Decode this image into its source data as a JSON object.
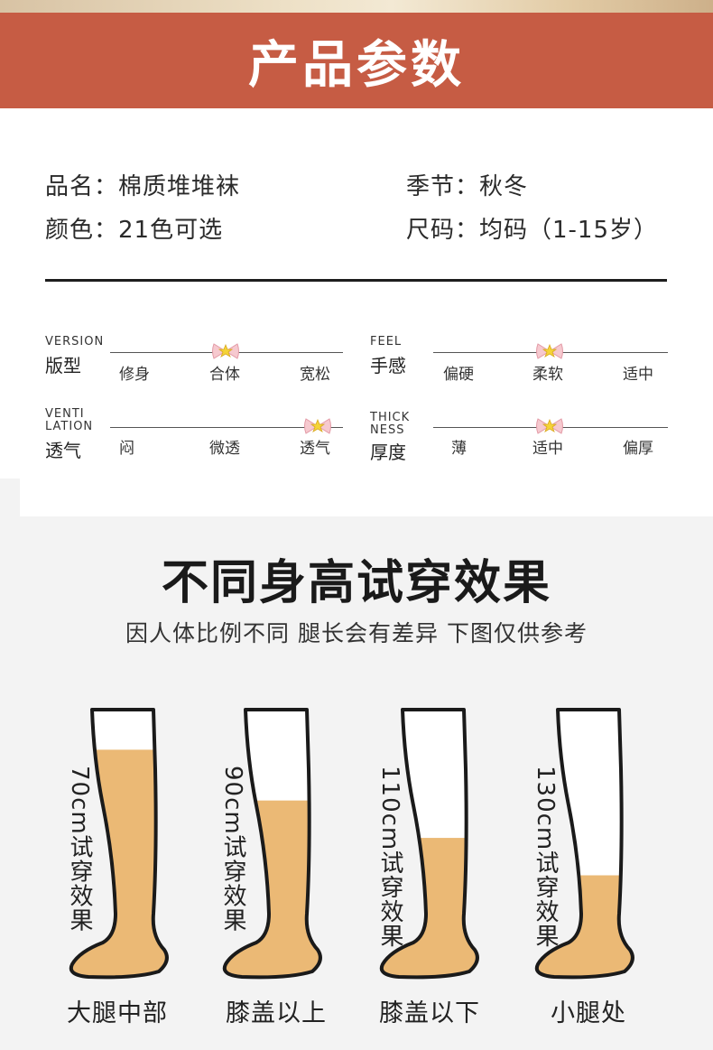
{
  "banner": {
    "title": "产品参数"
  },
  "specs": {
    "name": "品名：棉质堆堆袜",
    "season": "季节：秋冬",
    "color": "颜色：21色可选",
    "size": "尺码：均码（1-15岁）"
  },
  "scales": [
    {
      "en": "VERSION",
      "zh": "版型",
      "options": [
        "修身",
        "合体",
        "宽松"
      ],
      "selected_index": 1
    },
    {
      "en": "FEEL",
      "zh": "手感",
      "options": [
        "偏硬",
        "柔软",
        "适中"
      ],
      "selected_index": 1
    },
    {
      "en": "VENTI\nLATION",
      "zh": "透气",
      "options": [
        "闷",
        "微透",
        "透气"
      ],
      "selected_index": 2
    },
    {
      "en": "THICK\nNESS",
      "zh": "厚度",
      "options": [
        "薄",
        "适中",
        "偏厚"
      ],
      "selected_index": 1
    }
  ],
  "marker_icon": "bow-star-icon",
  "colors": {
    "banner": "#c65c44",
    "sock_fill": "#ebb975",
    "divider": "#1e1e1e"
  },
  "fit_section": {
    "title": "不同身高试穿效果",
    "subtitle": "因人体比例不同 腿长会有差异 下图仅供参考",
    "legs": [
      {
        "height": "70cm",
        "label": "试穿效果",
        "caption": "大腿中部",
        "coverage": 0.85
      },
      {
        "height": "90cm",
        "label": "试穿效果",
        "caption": "膝盖以上",
        "coverage": 0.66
      },
      {
        "height": "110cm",
        "label": "试穿效果",
        "caption": "膝盖以下",
        "coverage": 0.52
      },
      {
        "height": "130cm",
        "label": "试穿效果",
        "caption": "小腿处",
        "coverage": 0.38
      }
    ]
  }
}
